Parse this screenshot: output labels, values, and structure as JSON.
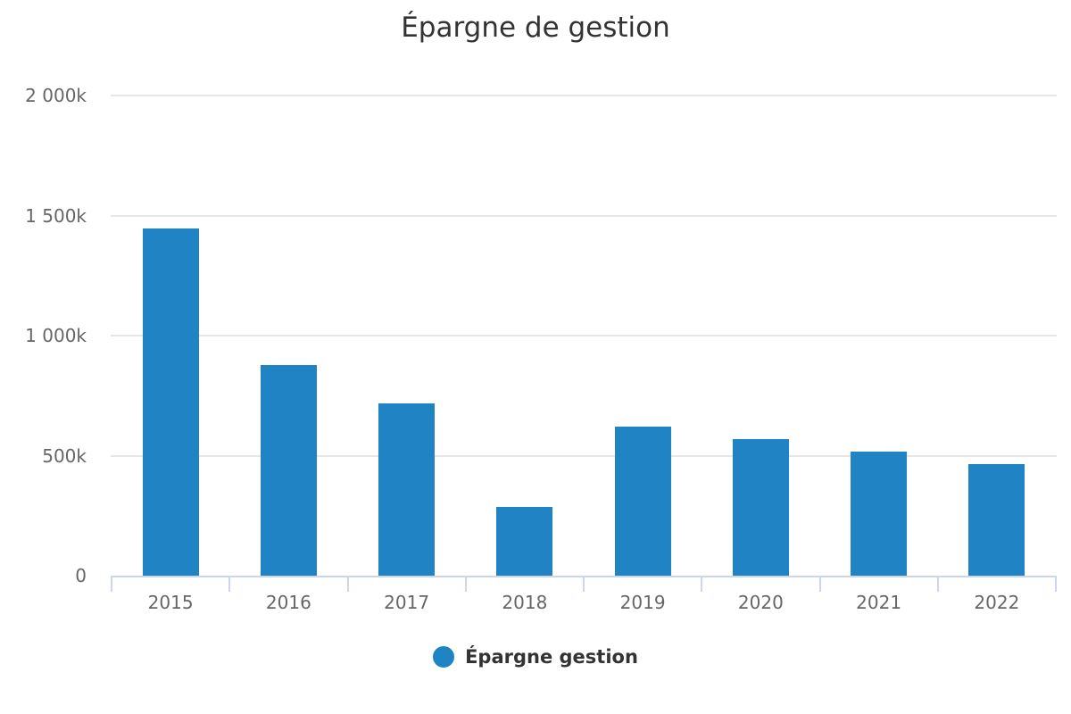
{
  "chart_data": {
    "type": "bar",
    "title": "Épargne de gestion",
    "categories": [
      "2015",
      "2016",
      "2017",
      "2018",
      "2019",
      "2020",
      "2021",
      "2022"
    ],
    "series": [
      {
        "name": "Épargne gestion",
        "color": "#1f83c4",
        "values": [
          1447000,
          879000,
          718000,
          287000,
          622000,
          570000,
          518000,
          465000
        ]
      }
    ],
    "xlabel": "",
    "ylabel": "",
    "ylim": [
      0,
      2000000
    ],
    "yticks": [
      {
        "value": 0,
        "label": "0"
      },
      {
        "value": 500000,
        "label": "500k"
      },
      {
        "value": 1000000,
        "label": "1 000k"
      },
      {
        "value": 1500000,
        "label": "1 500k"
      },
      {
        "value": 2000000,
        "label": "2 000k"
      }
    ],
    "grid": true,
    "legend_position": "bottom",
    "grid_color": "#e6e6e6",
    "axis_color": "#ccd6eb",
    "label_color": "#666666",
    "title_color": "#333333",
    "background_color": "#ffffff"
  }
}
